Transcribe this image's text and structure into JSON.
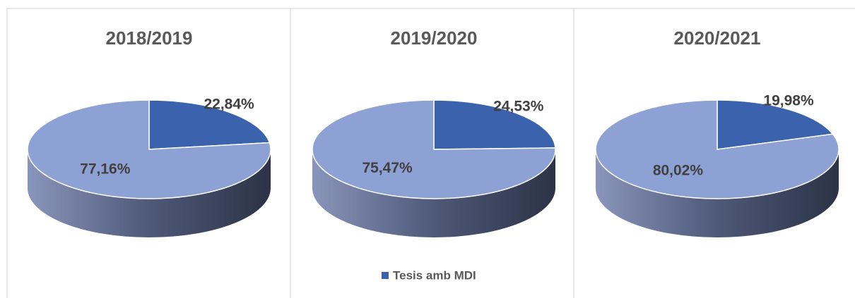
{
  "chart_data": [
    {
      "type": "pie",
      "title": "2018/2019",
      "values": [
        22.84,
        77.16
      ],
      "value_labels": [
        "22,84%",
        "77,16%"
      ],
      "colors": [
        "#3a62ad",
        "#8ea1d4"
      ]
    },
    {
      "type": "pie",
      "title": "2019/2020",
      "categories": [
        "Tesis amb MDI",
        null
      ],
      "values": [
        24.53,
        75.47
      ],
      "value_labels": [
        "24,53%",
        "75,47%"
      ],
      "colors": [
        "#3a62ad",
        "#8ea1d4"
      ]
    },
    {
      "type": "pie",
      "title": "2020/2021",
      "values": [
        19.98,
        80.02
      ],
      "value_labels": [
        "19,98%",
        "80,02%"
      ],
      "colors": [
        "#3a62ad",
        "#8ea1d4"
      ]
    }
  ]
}
